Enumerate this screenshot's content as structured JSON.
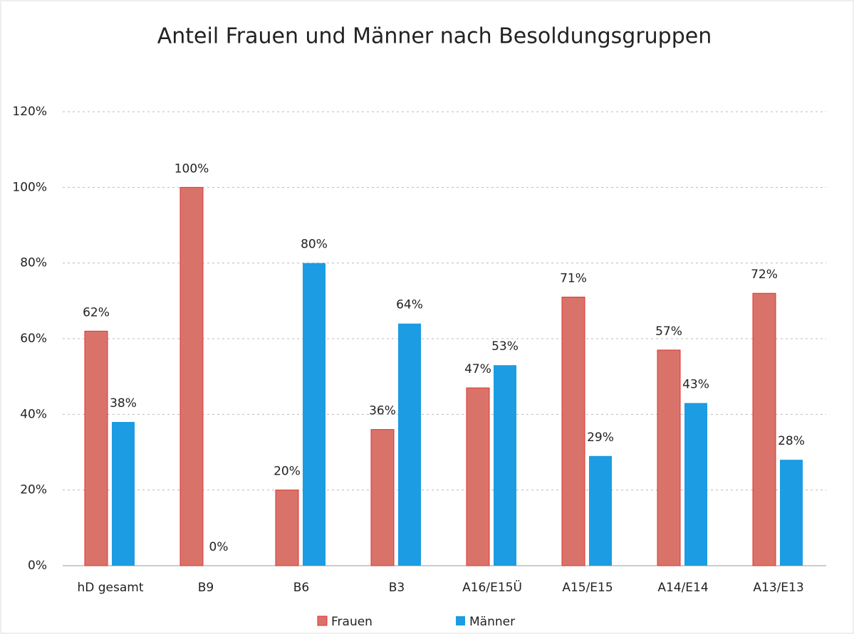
{
  "chart_data": {
    "type": "bar",
    "title": "Anteil Frauen und Männer nach Besoldungsgruppen",
    "categories": [
      "hD gesamt",
      "B9",
      "B6",
      "B3",
      "A16/E15Ü",
      "A15/E15",
      "A14/E14",
      "A13/E13"
    ],
    "series": [
      {
        "name": "Frauen",
        "color": "#d9736a",
        "values": [
          62,
          100,
          20,
          36,
          47,
          71,
          57,
          72
        ],
        "value_labels": [
          "62%",
          "100%",
          "20%",
          "36%",
          "47%",
          "71%",
          "57%",
          "72%"
        ]
      },
      {
        "name": "Männer",
        "color": "#1c9ce2",
        "values": [
          38,
          0,
          80,
          64,
          53,
          29,
          43,
          28
        ],
        "value_labels": [
          "38%",
          "0%",
          "80%",
          "64%",
          "53%",
          "29%",
          "43%",
          "28%"
        ]
      }
    ],
    "ylim": [
      0,
      120
    ],
    "yticks": [
      {
        "value": 0,
        "label": "0%"
      },
      {
        "value": 20,
        "label": "20%"
      },
      {
        "value": 40,
        "label": "40%"
      },
      {
        "value": 60,
        "label": "60%"
      },
      {
        "value": 80,
        "label": "80%"
      },
      {
        "value": 100,
        "label": "100%"
      },
      {
        "value": 120,
        "label": "120%"
      }
    ],
    "grid": true,
    "legend": "bottom"
  }
}
